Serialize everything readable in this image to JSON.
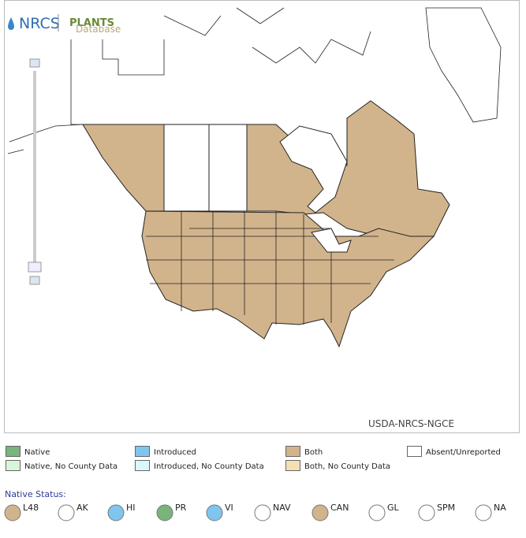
{
  "header": {
    "agency": "NRCS",
    "product": "PLANTS",
    "product_sub": "Database"
  },
  "map": {
    "credit": "USDA-NRCS-NGCE"
  },
  "legend": [
    {
      "label": "Native",
      "color": "#78b47b"
    },
    {
      "label": "Introduced",
      "color": "#7fc6ef"
    },
    {
      "label": "Both",
      "color": "#d2b48c"
    },
    {
      "label": "Absent/Unreported",
      "color": "#ffffff"
    },
    {
      "label": "Native, No County Data",
      "color": "#d9f5d9"
    },
    {
      "label": "Introduced, No County Data",
      "color": "#dbf8f8"
    },
    {
      "label": "Both, No County Data",
      "color": "#f5dfb5"
    }
  ],
  "native_status": {
    "title": "Native Status:",
    "items": [
      {
        "label": "L48",
        "color": "#d2b48c"
      },
      {
        "label": "AK",
        "color": "#ffffff"
      },
      {
        "label": "HI",
        "color": "#7fc6ef"
      },
      {
        "label": "PR",
        "color": "#78b47b"
      },
      {
        "label": "VI",
        "color": "#7fc6ef"
      },
      {
        "label": "NAV",
        "color": "#ffffff"
      },
      {
        "label": "CAN",
        "color": "#d2b48c"
      },
      {
        "label": "GL",
        "color": "#ffffff"
      },
      {
        "label": "SPM",
        "color": "#ffffff"
      },
      {
        "label": "NA",
        "color": "#ffffff"
      }
    ]
  }
}
